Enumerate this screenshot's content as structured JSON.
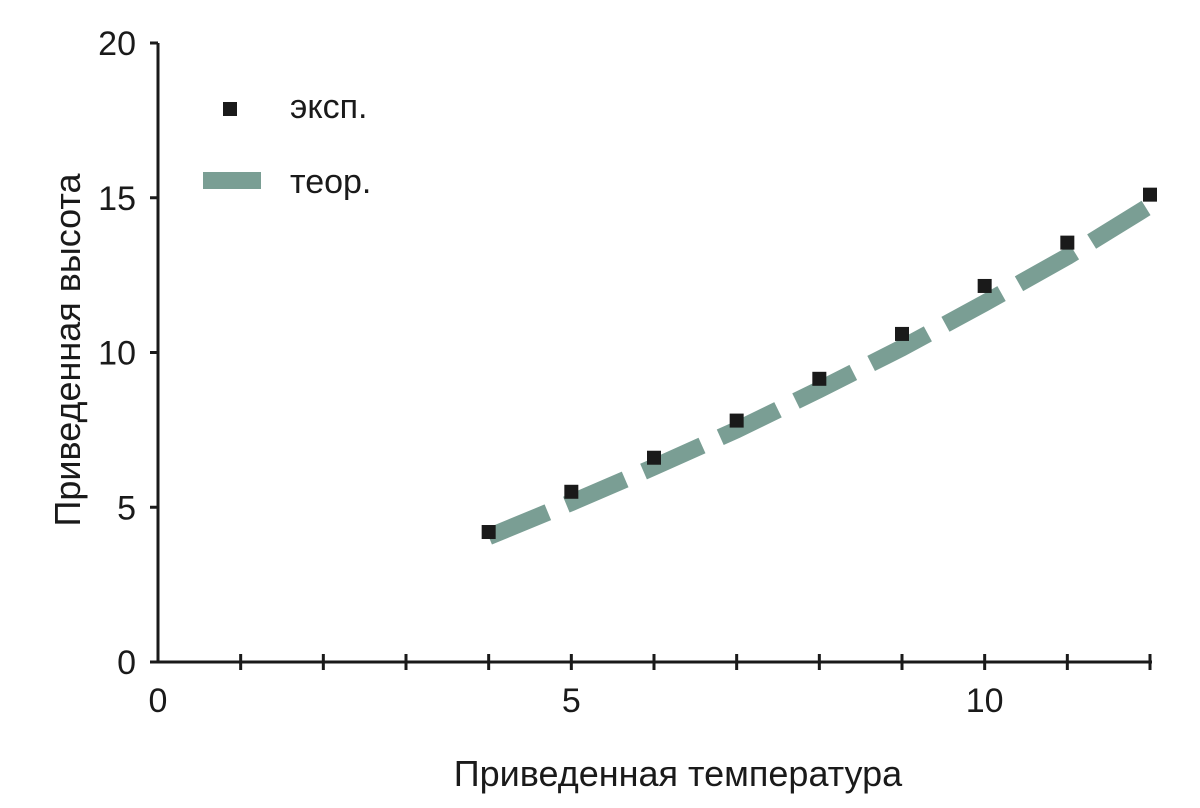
{
  "chart_data": {
    "type": "scatter",
    "xlabel": "Приведенная температура",
    "ylabel": "Приведенная высота",
    "xlim": [
      0,
      12
    ],
    "ylim": [
      0,
      20
    ],
    "x_major_ticks": [
      0,
      5,
      10
    ],
    "x_minor_ticks": [
      1,
      2,
      3,
      4,
      6,
      7,
      8,
      9,
      11,
      12
    ],
    "x_tick_labels": [
      "0",
      "5",
      "10"
    ],
    "y_ticks": [
      0,
      5,
      10,
      15,
      20
    ],
    "y_tick_labels": [
      "0",
      "5",
      "10",
      "15",
      "20"
    ],
    "grid": false,
    "legend_position": "top-left",
    "series": [
      {
        "name": "эксп.",
        "kind": "points",
        "marker": "square",
        "color": "#1a1a1a",
        "x": [
          4,
          5,
          6,
          7,
          8,
          9,
          10,
          11,
          12
        ],
        "y": [
          4.2,
          5.5,
          6.6,
          7.8,
          9.15,
          10.6,
          12.15,
          13.55,
          15.1
        ]
      },
      {
        "name": "теор.",
        "kind": "dashed-band",
        "color": "#7a9e94",
        "x": [
          4,
          5,
          6,
          7,
          8,
          9,
          10,
          11,
          12
        ],
        "y": [
          4.05,
          5.15,
          6.3,
          7.5,
          8.8,
          10.15,
          11.6,
          13.1,
          14.75
        ]
      }
    ]
  }
}
